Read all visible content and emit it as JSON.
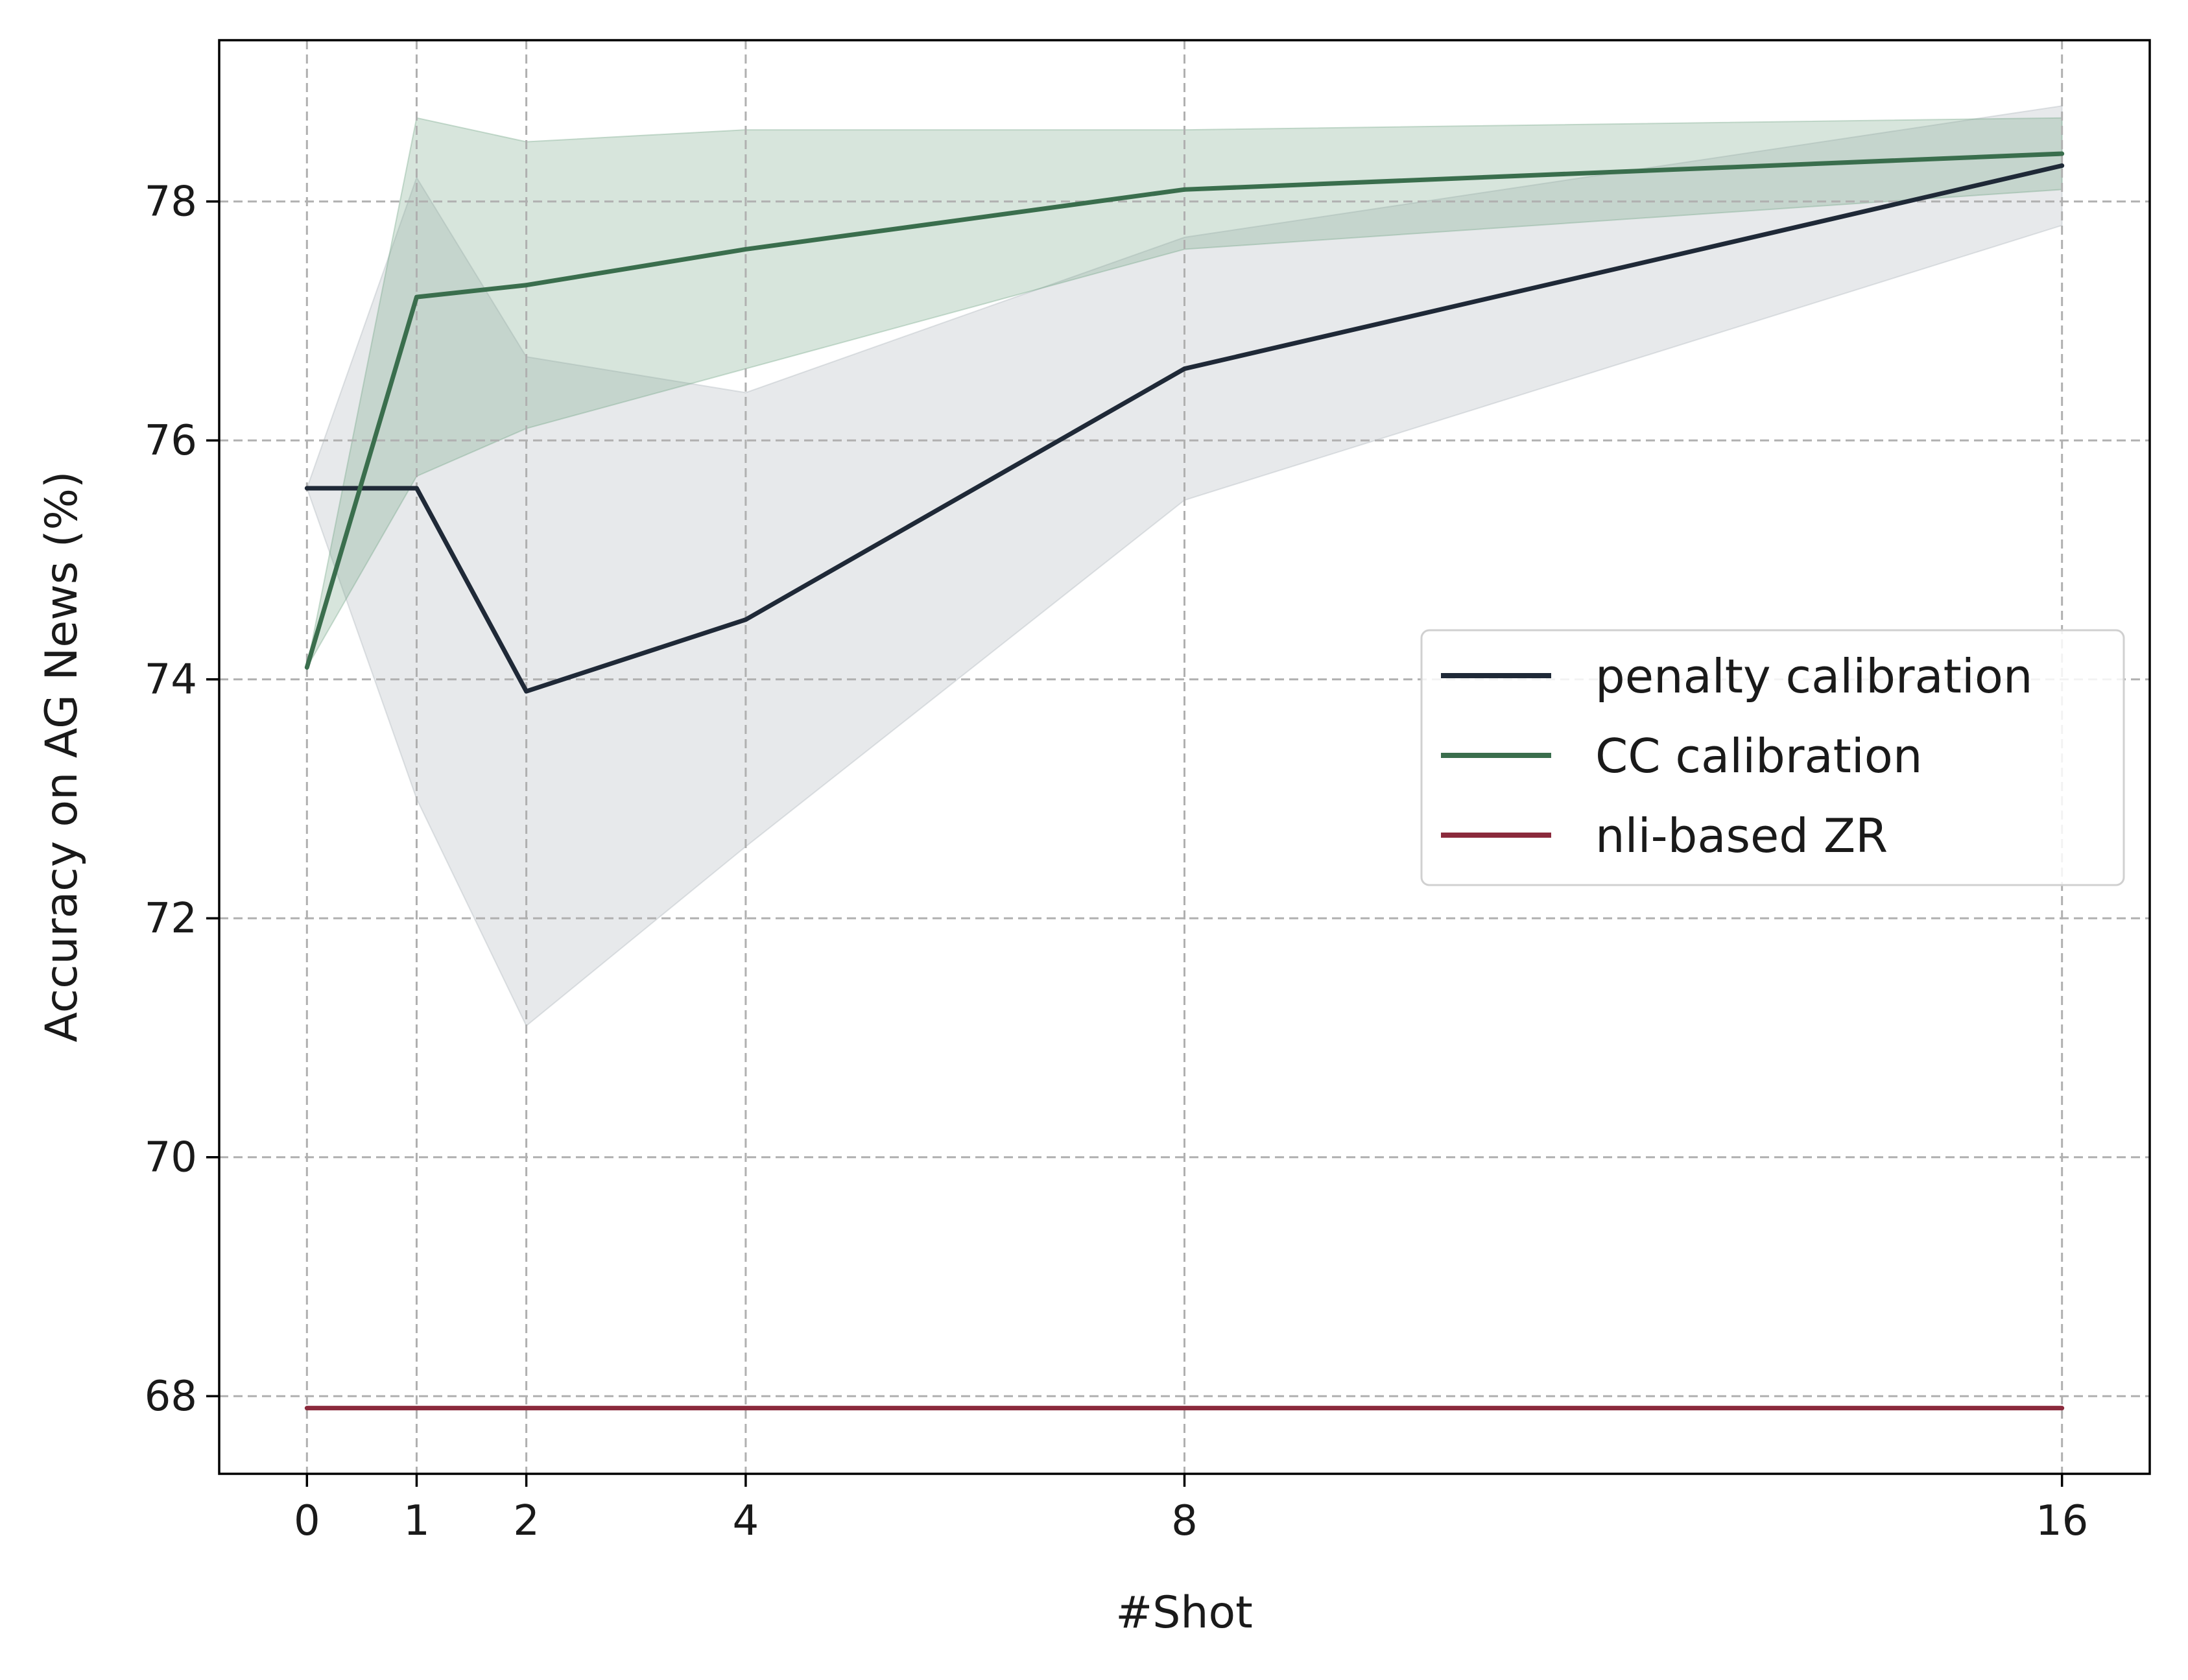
{
  "chart_data": {
    "type": "line",
    "title": "",
    "xlabel": "#Shot",
    "ylabel": "Accuracy on AG News (%)",
    "x": [
      0,
      1,
      2,
      4,
      8,
      16
    ],
    "x_ticks": [
      "0",
      "1",
      "2",
      "4",
      "8",
      "16"
    ],
    "y_ticks": [
      "68",
      "70",
      "72",
      "74",
      "76",
      "78"
    ],
    "y_tick_values": [
      68,
      70,
      72,
      74,
      76,
      78
    ],
    "xlim": [
      -0.8,
      16.8
    ],
    "ylim": [
      67.35,
      79.35
    ],
    "grid": true,
    "legend_position": "center-right",
    "series": [
      {
        "name": "penalty calibration",
        "color": "#1f2937",
        "values": [
          75.6,
          75.6,
          73.9,
          74.5,
          76.6,
          78.3
        ],
        "band_lower": [
          75.6,
          73.0,
          71.1,
          72.6,
          75.5,
          77.8
        ],
        "band_upper": [
          75.6,
          78.2,
          76.7,
          76.4,
          77.7,
          78.8
        ],
        "band_color": "#a9b1b7"
      },
      {
        "name": "CC calibration",
        "color": "#3a6e4d",
        "values": [
          74.1,
          77.2,
          77.3,
          77.6,
          78.1,
          78.4
        ],
        "band_lower": [
          74.1,
          75.7,
          76.1,
          76.6,
          77.6,
          78.1
        ],
        "band_upper": [
          74.1,
          78.7,
          78.5,
          78.6,
          78.6,
          78.7
        ],
        "band_color": "#6fa383"
      },
      {
        "name": "nli-based ZR",
        "color": "#8b2a3c",
        "values": [
          67.9,
          67.9,
          67.9,
          67.9,
          67.9,
          67.9
        ]
      }
    ]
  }
}
